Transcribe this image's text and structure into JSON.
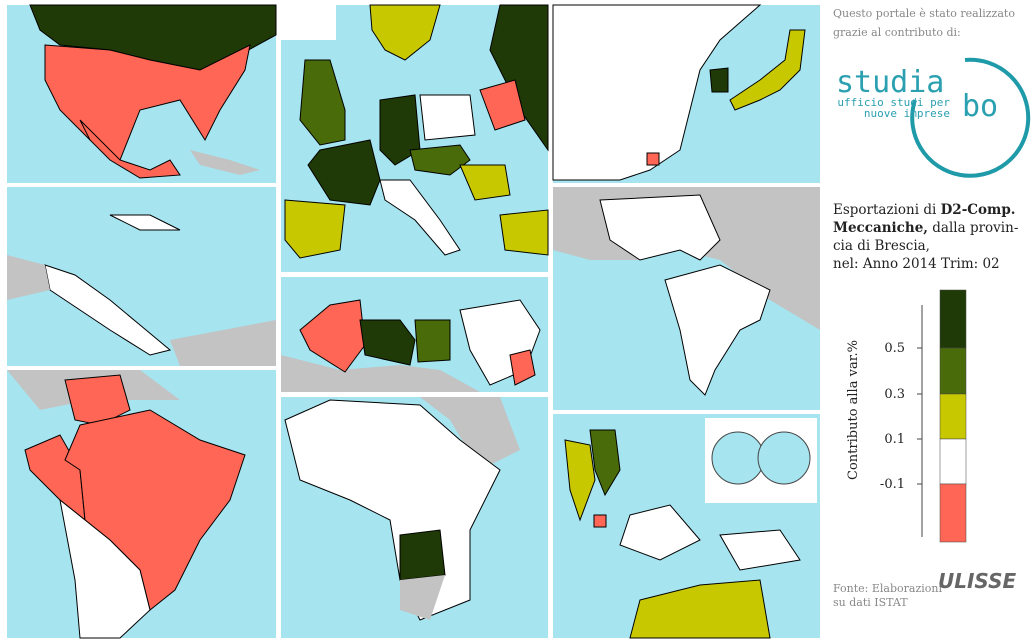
{
  "sponsor": {
    "line1": "Questo portale è stato realizzato",
    "line2": "grazie al contributo di:",
    "logo_name": "studia",
    "logo_suffix": "bo",
    "logo_sub1": "ufficio studi per",
    "logo_sub2": "nuove imprese"
  },
  "description": {
    "prefix": "Esportazioni di ",
    "product_line1": "D2-Comp.",
    "product_line2": "Meccaniche,",
    "rest_line1": " dalla provin-",
    "rest_line2": "cia di Brescia,",
    "period": "nel: Anno 2014 Trim: 02"
  },
  "legend": {
    "axis_label": "Contributo alla var.%",
    "ticks": [
      0.5,
      0.3,
      0.1,
      -0.1
    ],
    "colors": [
      "#1f3a06",
      "#4a6b0a",
      "#c8c800",
      "#ffffff",
      "#ff6655"
    ]
  },
  "footer": {
    "source_line1": "Fonte: Elaborazioni",
    "source_line2": "su dati ISTAT",
    "brand": "ULISSE"
  }
}
